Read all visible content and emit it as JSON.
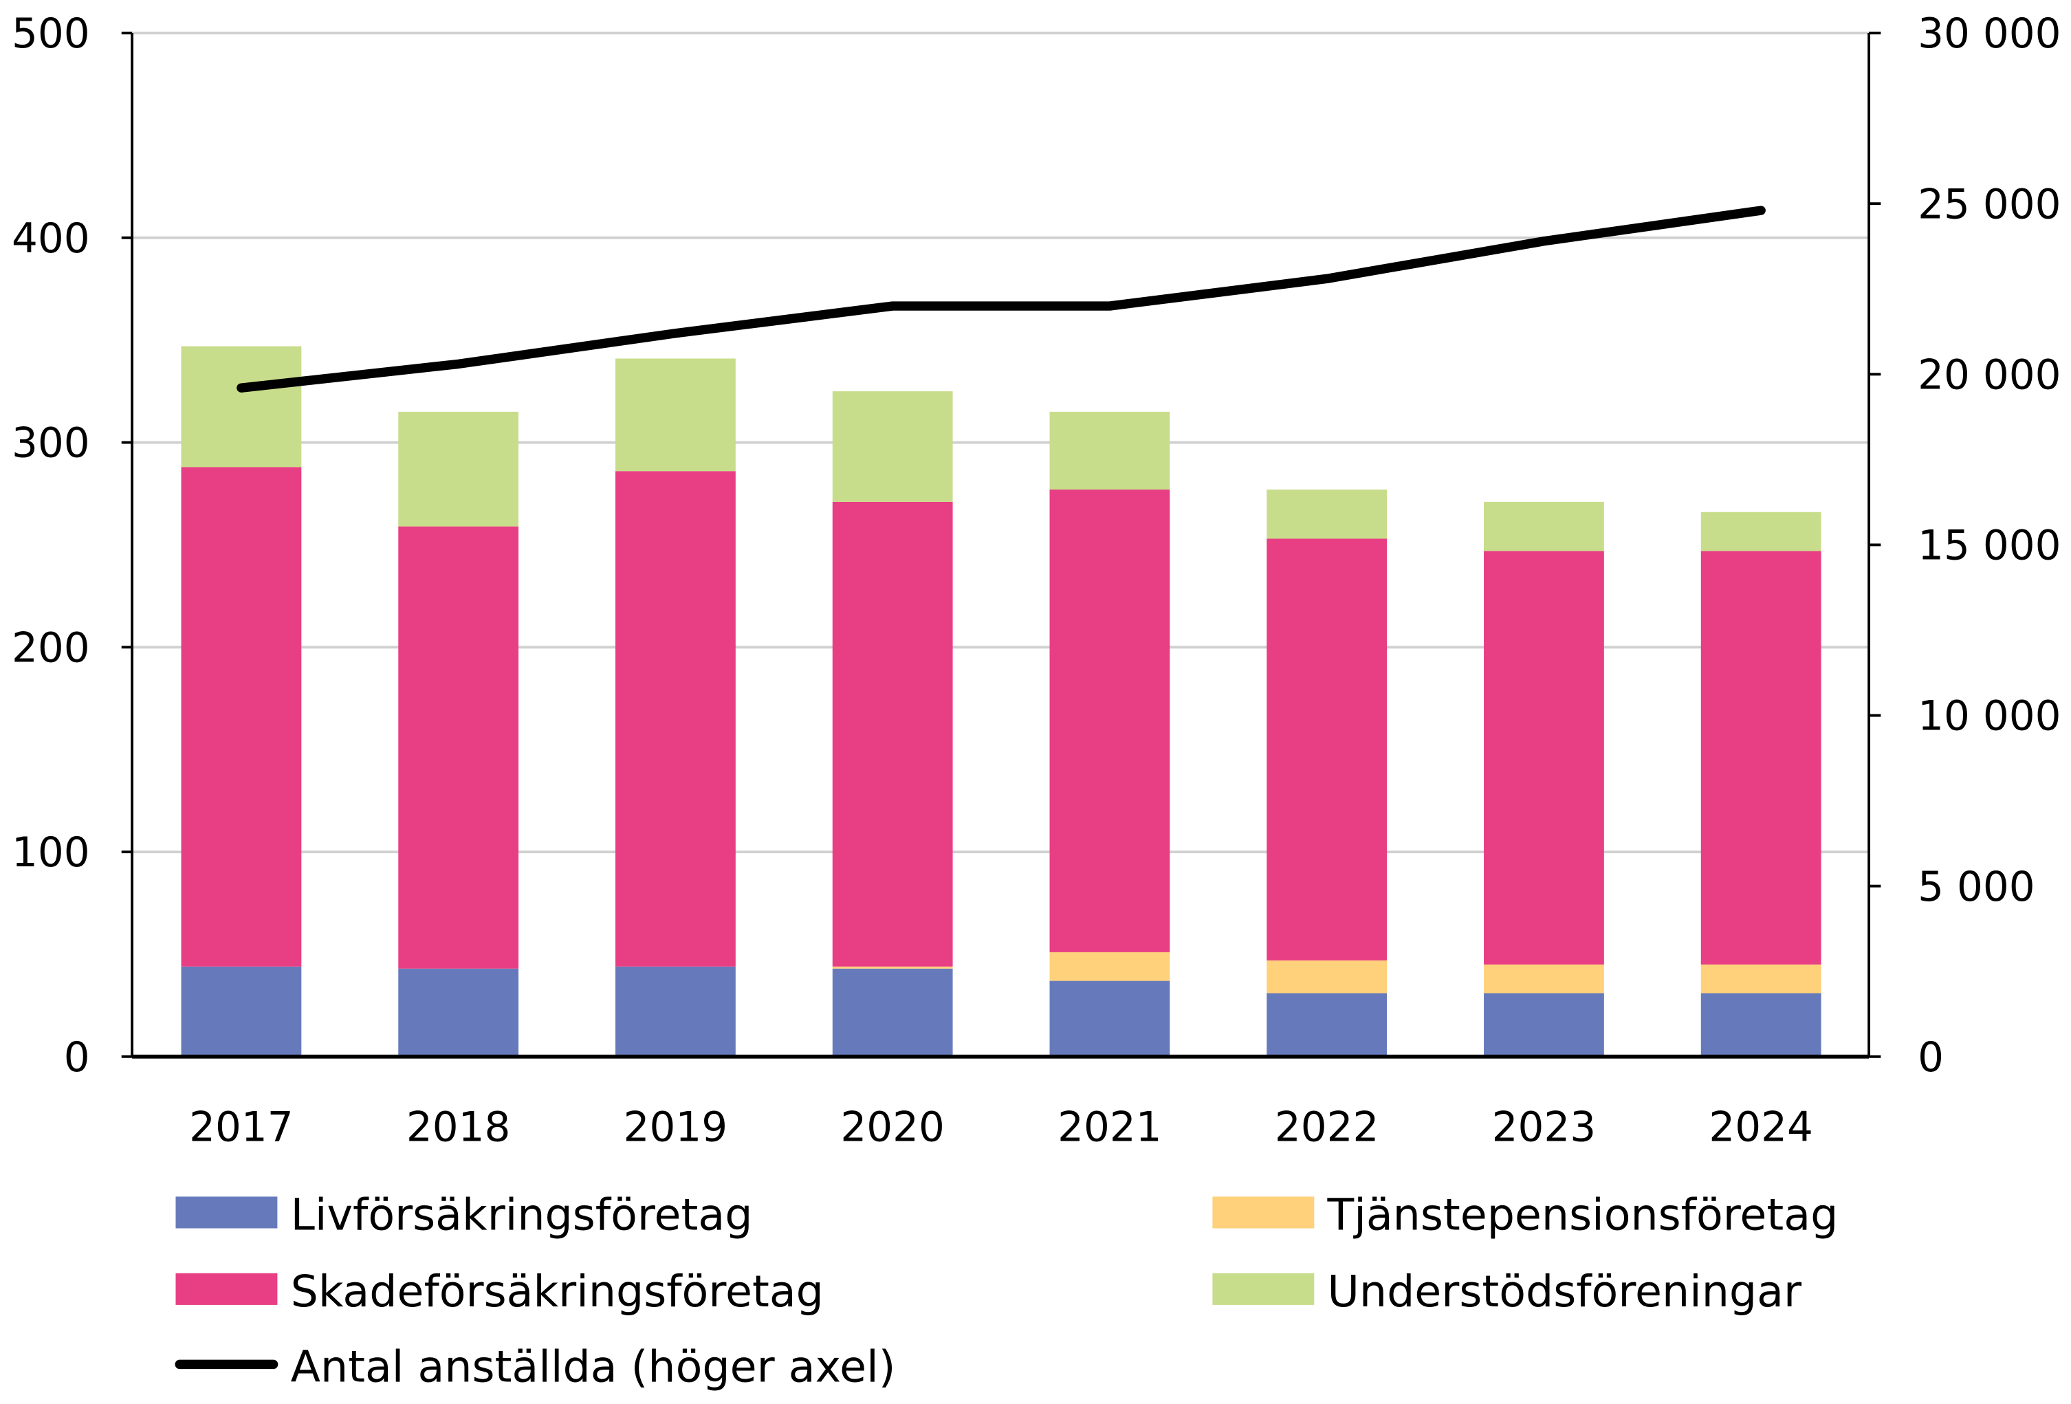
{
  "chart_data": {
    "type": "bar",
    "stacked": true,
    "categories": [
      "2017",
      "2018",
      "2019",
      "2020",
      "2021",
      "2022",
      "2023",
      "2024"
    ],
    "series": [
      {
        "name": "Livförsäkringsföretag",
        "color": "#667ABB",
        "values": [
          44,
          43,
          44,
          43,
          37,
          31,
          31,
          31
        ]
      },
      {
        "name": "Tjänstepensionsföretag",
        "color": "#FED17A",
        "values": [
          0,
          0,
          0,
          1,
          14,
          16,
          14,
          14
        ]
      },
      {
        "name": "Skadeförsäkringsföretag",
        "color": "#E83E84",
        "values": [
          244,
          216,
          242,
          227,
          226,
          206,
          202,
          202
        ]
      },
      {
        "name": "Understödsföreningar",
        "color": "#C8DD8B",
        "values": [
          59,
          56,
          55,
          54,
          38,
          24,
          24,
          19
        ]
      }
    ],
    "line_series": {
      "name": "Antal anställda (höger axel)",
      "color": "#000000",
      "axis": "right",
      "values": [
        19600,
        20300,
        21200,
        22000,
        22000,
        22800,
        23900,
        24800
      ]
    },
    "ylim": [
      0,
      500
    ],
    "yticks": [
      "0",
      "100",
      "200",
      "300",
      "400",
      "500"
    ],
    "y2lim": [
      0,
      30000
    ],
    "y2ticks": [
      "0",
      "5 000",
      "10 000",
      "15 000",
      "20 000",
      "25 000",
      "30 000"
    ],
    "grid": true,
    "legend_placement": "bottom",
    "title": "",
    "xlabel": "",
    "ylabel": ""
  }
}
